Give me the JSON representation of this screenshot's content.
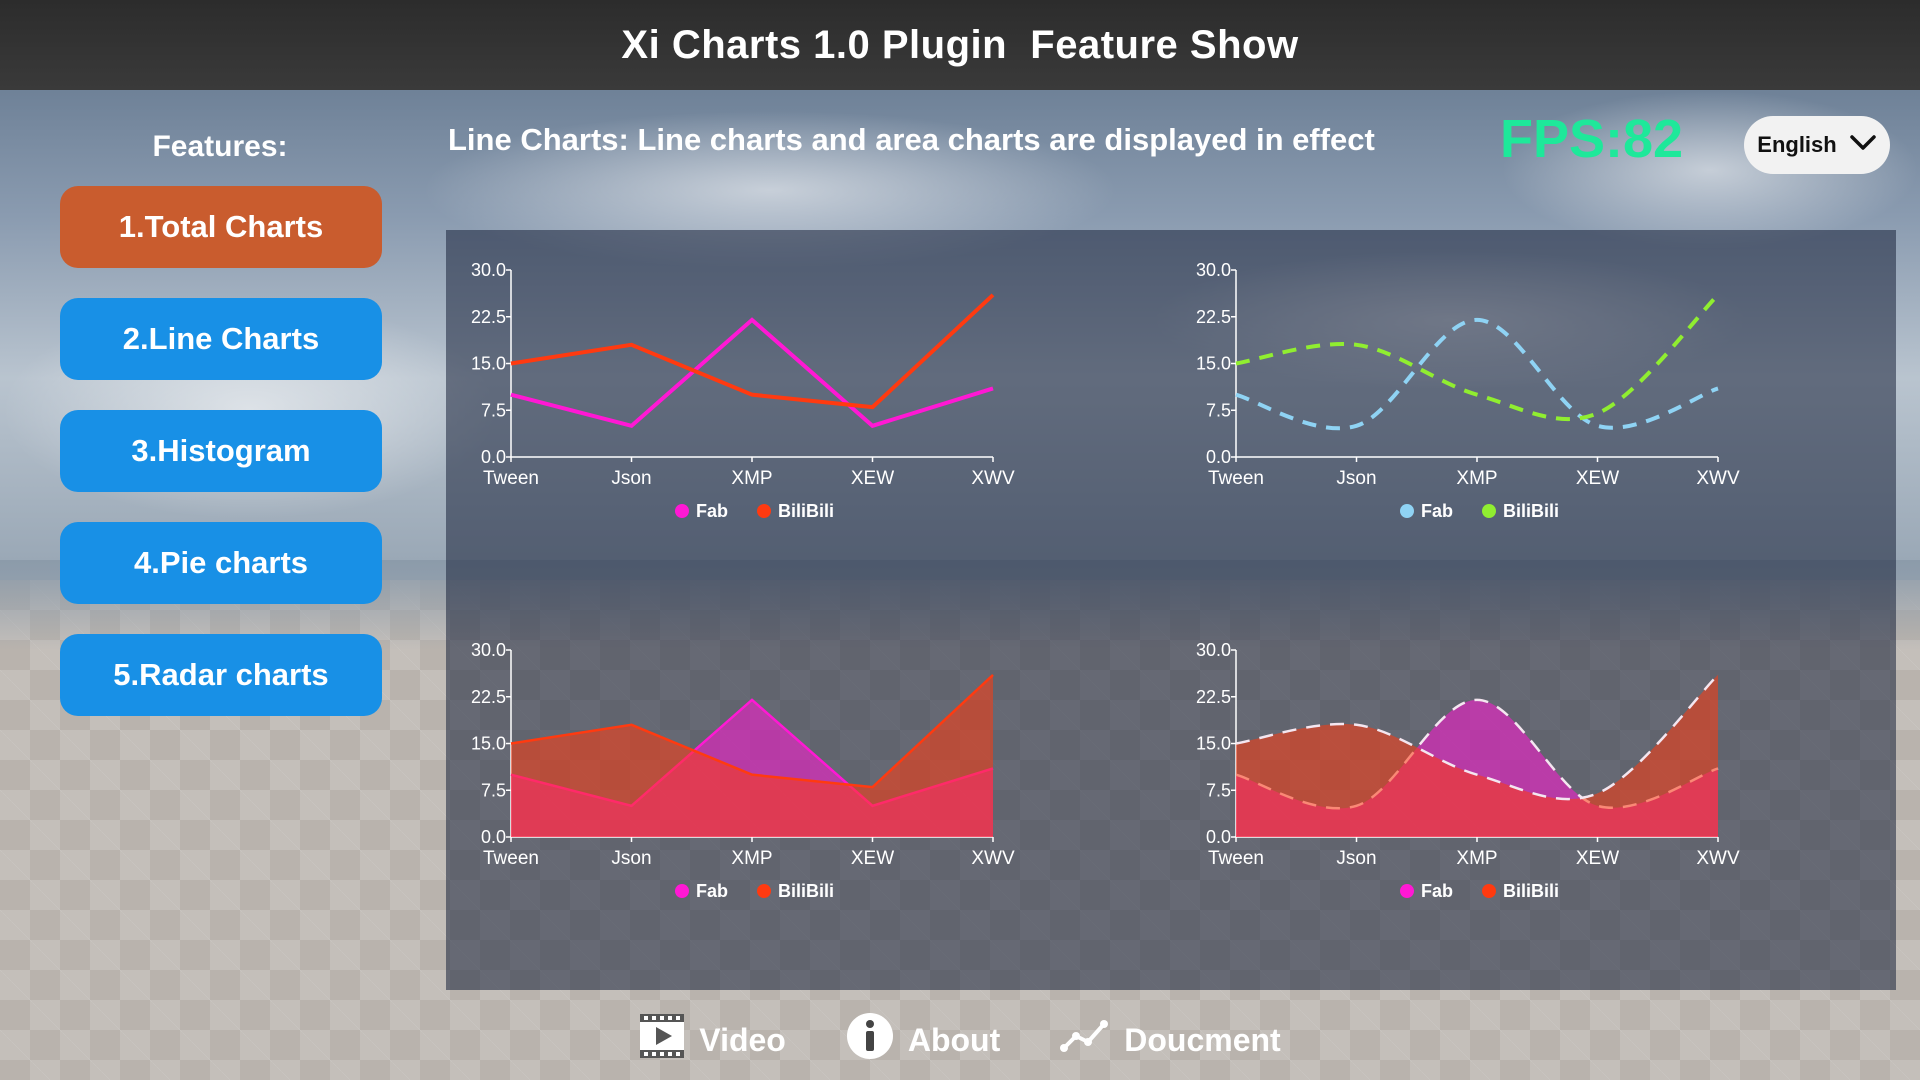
{
  "header": {
    "title": "Xi Charts 1.0 Plugin  Feature Show"
  },
  "sidebar": {
    "label": "Features:",
    "items": [
      {
        "label": "1.Total Charts",
        "active": true
      },
      {
        "label": "2.Line Charts",
        "active": false
      },
      {
        "label": "3.Histogram",
        "active": false
      },
      {
        "label": "4.Pie charts",
        "active": false
      },
      {
        "label": "5.Radar charts",
        "active": false
      }
    ]
  },
  "main": {
    "subtitle": "Line Charts: Line charts and area charts are displayed in effect",
    "fps": "FPS:82",
    "language": "English"
  },
  "footer": {
    "video": "Video",
    "about": "About",
    "document": "Doucment"
  },
  "colors": {
    "accent_active": "#c95c2e",
    "button": "#1890e6",
    "fps": "#1ee89a"
  },
  "chart_data": [
    {
      "type": "line",
      "style": "straight",
      "categories": [
        "Tween",
        "Json",
        "XMP",
        "XEW",
        "XWV"
      ],
      "ylim": [
        0,
        30
      ],
      "yticks": [
        "0.0",
        "7.5",
        "15.0",
        "22.5",
        "30.0"
      ],
      "series": [
        {
          "name": "Fab",
          "color": "#ff18d4",
          "values": [
            10,
            5,
            22,
            5,
            11
          ]
        },
        {
          "name": "BiliBili",
          "color": "#ff3a10",
          "values": [
            15,
            18,
            10,
            8,
            26
          ]
        }
      ]
    },
    {
      "type": "line",
      "style": "smooth-dashed",
      "categories": [
        "Tween",
        "Json",
        "XMP",
        "XEW",
        "XWV"
      ],
      "ylim": [
        0,
        30
      ],
      "yticks": [
        "0.0",
        "7.5",
        "15.0",
        "22.5",
        "30.0"
      ],
      "series": [
        {
          "name": "Fab",
          "color": "#8fd3f4",
          "values": [
            10,
            5,
            22,
            5,
            11
          ]
        },
        {
          "name": "BiliBili",
          "color": "#90ee30",
          "values": [
            15,
            18,
            10,
            7,
            26
          ]
        }
      ]
    },
    {
      "type": "area",
      "style": "straight",
      "categories": [
        "Tween",
        "Json",
        "XMP",
        "XEW",
        "XWV"
      ],
      "ylim": [
        0,
        30
      ],
      "yticks": [
        "0.0",
        "7.5",
        "15.0",
        "22.5",
        "30.0"
      ],
      "series": [
        {
          "name": "Fab",
          "color": "#ff18d4",
          "values": [
            10,
            5,
            22,
            5,
            11
          ]
        },
        {
          "name": "BiliBili",
          "color": "#ff3a10",
          "values": [
            15,
            18,
            10,
            8,
            26
          ]
        }
      ]
    },
    {
      "type": "area",
      "style": "smooth-dashed",
      "categories": [
        "Tween",
        "Json",
        "XMP",
        "XEW",
        "XWV"
      ],
      "ylim": [
        0,
        30
      ],
      "yticks": [
        "0.0",
        "7.5",
        "15.0",
        "22.5",
        "30.0"
      ],
      "series": [
        {
          "name": "Fab",
          "color": "#ff18d4",
          "values": [
            10,
            5,
            22,
            5,
            11
          ]
        },
        {
          "name": "BiliBili",
          "color": "#ff3a10",
          "values": [
            15,
            18,
            10,
            7,
            26
          ]
        }
      ]
    }
  ]
}
